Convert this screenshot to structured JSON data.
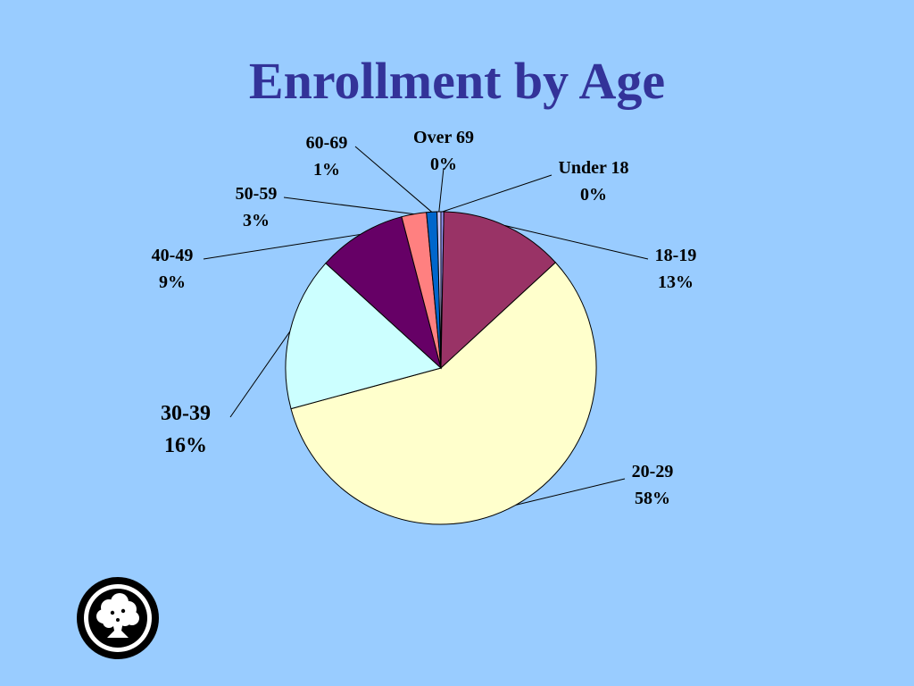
{
  "slide": {
    "title": "Enrollment by Age"
  },
  "chart_data": {
    "type": "pie",
    "title": "Enrollment by Age",
    "slices": [
      {
        "label": "Under 18",
        "pct_text": "0%",
        "value": 0.3,
        "color": "#9999ff"
      },
      {
        "label": "18-19",
        "pct_text": "13%",
        "value": 13,
        "color": "#993366"
      },
      {
        "label": "20-29",
        "pct_text": "58%",
        "value": 58,
        "color": "#ffffcc"
      },
      {
        "label": "30-39",
        "pct_text": "16%",
        "value": 16,
        "color": "#ccffff"
      },
      {
        "label": "40-49",
        "pct_text": "9%",
        "value": 9.3,
        "color": "#660066"
      },
      {
        "label": "50-59",
        "pct_text": "3%",
        "value": 2.6,
        "color": "#ff8080"
      },
      {
        "label": "60-69",
        "pct_text": "1%",
        "value": 1.1,
        "color": "#0066cc"
      },
      {
        "label": "Over 69",
        "pct_text": "0%",
        "value": 0.4,
        "color": "#ccccff"
      }
    ]
  }
}
